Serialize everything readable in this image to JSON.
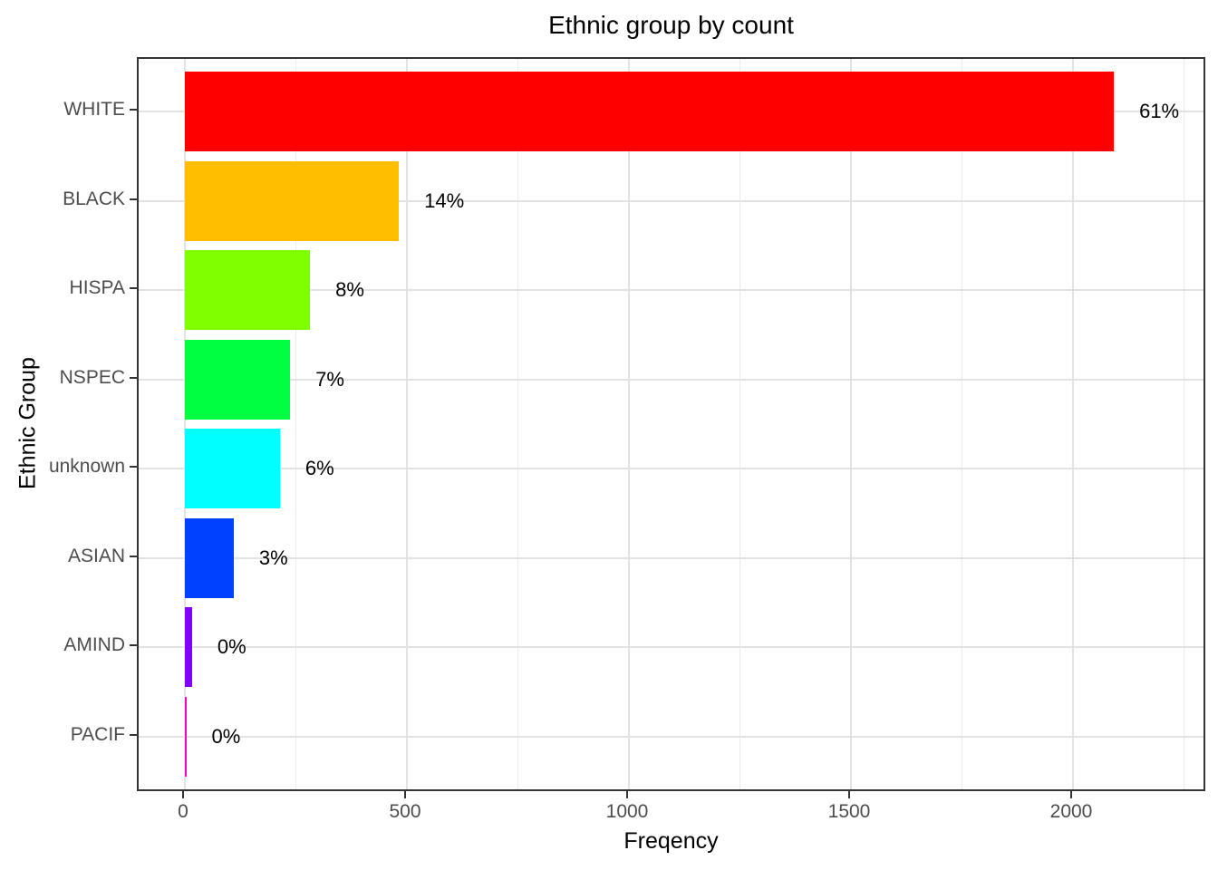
{
  "title": "Ethnic group by count",
  "x_axis": {
    "label": "Freqency",
    "tick_labels": [
      "0",
      "500",
      "1000",
      "1500",
      "2000"
    ],
    "tick_values": [
      0,
      500,
      1000,
      1500,
      2000
    ],
    "minor_grid_values": [
      250,
      750,
      1250,
      1750,
      2250
    ]
  },
  "y_axis": {
    "label": "Ethnic Group"
  },
  "chart_data": {
    "type": "bar",
    "orientation": "horizontal",
    "title": "Ethnic group by count",
    "xlabel": "Freqency",
    "ylabel": "Ethnic Group",
    "xlim": [
      0,
      2300
    ],
    "grid": "vertical major every 500 + minor every 250; horizontal major at each category",
    "legend": "none",
    "categories": [
      "WHITE",
      "BLACK",
      "HISPA",
      "NSPEC",
      "unknown",
      "ASIAN",
      "AMIND",
      "PACIF"
    ],
    "values": [
      2092,
      482,
      282,
      237,
      214,
      110,
      16,
      3
    ],
    "percent_labels": [
      "61%",
      "14%",
      "8%",
      "7%",
      "6%",
      "3%",
      "0%",
      "0%"
    ],
    "bar_colors": [
      "#FF0000",
      "#FFBF00",
      "#80FF00",
      "#00FF40",
      "#00FFFF",
      "#0040FF",
      "#8000FF",
      "#FF00BF"
    ]
  },
  "colors": {
    "panel_border": "#333333",
    "grid_major": "#e3e3e3",
    "grid_minor": "#ebebeb",
    "tick_mark": "#333333",
    "tick_text": "#4d4d4d",
    "title_text": "#000000",
    "background": "#ffffff"
  }
}
